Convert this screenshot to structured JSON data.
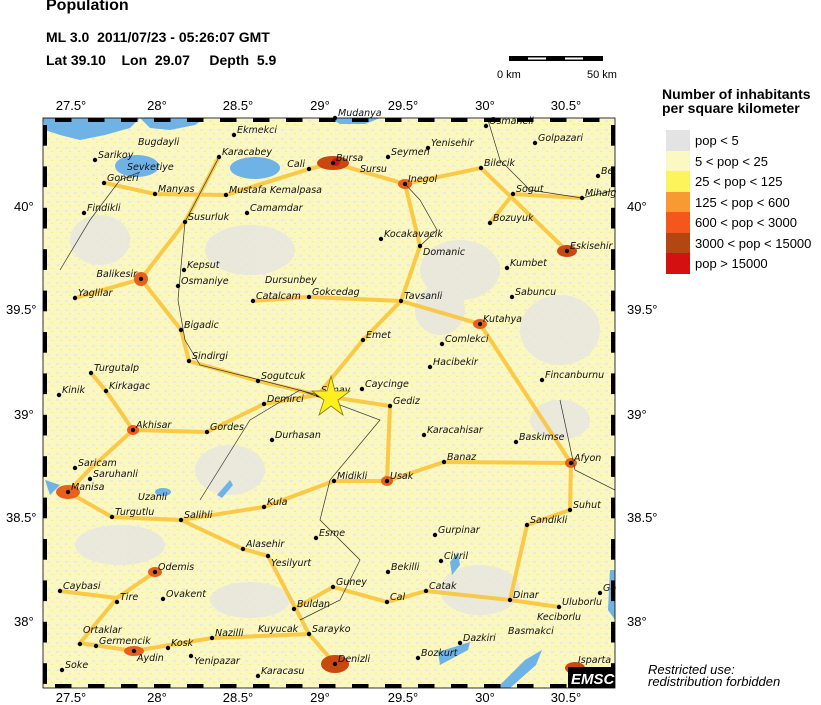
{
  "header": {
    "title": "Population",
    "event_line": "ML 3.0  2011/07/23 - 05:26:07 GMT",
    "location_line": "Lat 39.10    Lon  29.07     Depth  5.9"
  },
  "scale_bar": {
    "start_label": "0 km",
    "end_label": "50 km"
  },
  "axes": {
    "lon_ticks": [
      "27.5°",
      "28°",
      "28.5°",
      "29°",
      "29.5°",
      "30°",
      "30.5°"
    ],
    "lat_ticks": [
      "40°",
      "39.5°",
      "39°",
      "38.5°",
      "38°"
    ]
  },
  "legend": {
    "title_line1": "Number of inhabitants",
    "title_line2": "per square kilometer",
    "items": [
      {
        "label": "pop < 5",
        "color": "#e3e3e3"
      },
      {
        "label": "5 < pop < 25",
        "color": "#fbf8c4"
      },
      {
        "label": "25 < pop < 125",
        "color": "#fbf45a"
      },
      {
        "label": "125 < pop < 600",
        "color": "#f79a32"
      },
      {
        "label": "600 < pop < 3000",
        "color": "#f4571b"
      },
      {
        "label": "3000 < pop < 15000",
        "color": "#b34712"
      },
      {
        "label": "pop > 15000",
        "color": "#d41010"
      }
    ]
  },
  "epicenter": {
    "lat": 39.1,
    "lon": 29.07,
    "marker": "star-icon",
    "color": "#ffee22"
  },
  "cities": [
    "Mudanya",
    "Ekmekci",
    "Osmaneli",
    "Golpazari",
    "Yenisehir",
    "Seymen",
    "Sursu",
    "Bursa",
    "Cali",
    "Karacabey",
    "Sarikoy",
    "Bugdayli",
    "Goneri",
    "Sevketiye",
    "Manyas",
    "Mustafa Kemalpasa",
    "Camamdar",
    "Susurluk",
    "Findikli",
    "Bilecik",
    "Inegol",
    "Sogut",
    "Bozuyuk",
    "Be",
    "Mihalg",
    "Kocakavacik",
    "Domanic",
    "Eskisehir",
    "Kumbet",
    "Kepsut",
    "Balikesir",
    "Osmaniye",
    "Yaglilar",
    "Dursunbey",
    "Catalcam",
    "Gokcedag",
    "Tavsanli",
    "Sabuncu",
    "Kutahya",
    "Bigadic",
    "Emet",
    "Comlekci",
    "Hacibekir",
    "Sindirgi",
    "Fincanburnu",
    "Turgutalp",
    "Sogutcuk",
    "Kinik",
    "Kirkagac",
    "Simav",
    "Caycinge",
    "Gediz",
    "Demirci",
    "Karacahisar",
    "Akhisar",
    "Gordes",
    "Durhasan",
    "Baskimse",
    "Saricam",
    "Banaz",
    "Afyon",
    "Saruhanli",
    "Midikli",
    "Usak",
    "Manisa",
    "Suhut",
    "Kula",
    "Turgutlu",
    "Uzanli",
    "Salihli",
    "Sandikli",
    "Esme",
    "Gurpinar",
    "Alasehir",
    "Yesilyurt",
    "Civril",
    "Bekilli",
    "Odemis",
    "Guney",
    "Catak",
    "Caybasi",
    "Go",
    "Cal",
    "Dinar",
    "Uluborlu",
    "Tire",
    "Ovakent",
    "Buldan",
    "Keciborlu",
    "Basmakci",
    "Dazkiri",
    "Ortaklar",
    "Germencik",
    "Sarayko",
    "Nazilli",
    "Kuyucak",
    "Aydin",
    "Kosk",
    "Yenipazar",
    "Bozkurt",
    "Denizli",
    "Soke",
    "Karacasu",
    "Isparta"
  ],
  "logo": "EMSC",
  "restriction": {
    "line1": "Restricted use:",
    "line2": "redistribution forbidden"
  },
  "colors": {
    "water": "#6eb2e6",
    "land_low": "#e3e3e3"
  }
}
